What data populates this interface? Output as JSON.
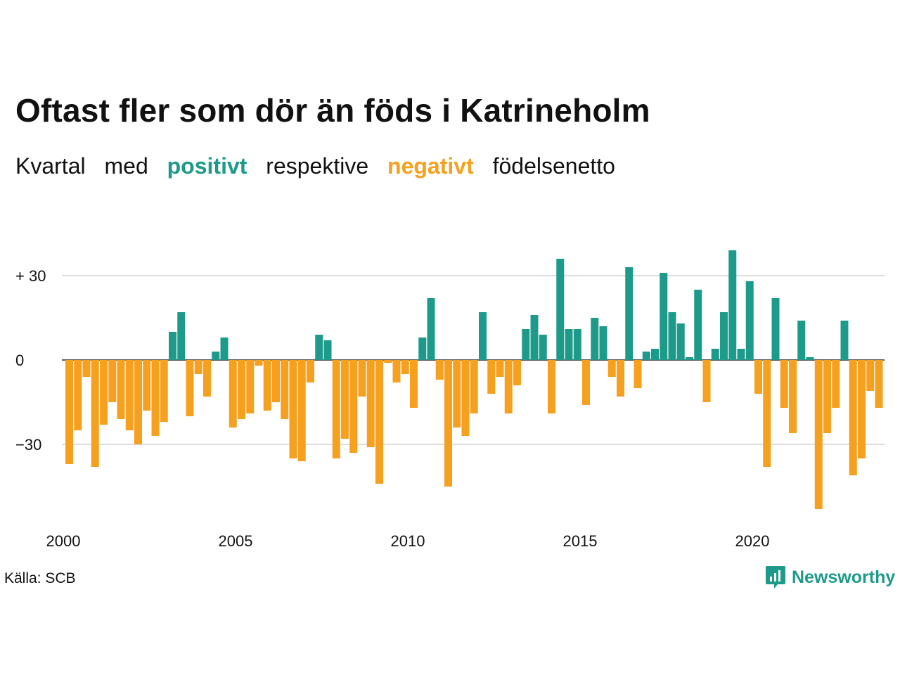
{
  "title": "Oftast fler som dör än föds i Katrineholm",
  "subtitle": {
    "w1": "Kvartal",
    "w2": "med",
    "w3": "positivt",
    "w4": "respektive",
    "w5": "negativt",
    "w6": "födelsenetto"
  },
  "source": "Källa: SCB",
  "brand": {
    "name": "Newsworthy",
    "icon": "newsworthy-logo-icon",
    "color": "#1e9a8a"
  },
  "colors": {
    "positive": "#1e9a8a",
    "negative": "#f5a01e",
    "grid": "#dddddd"
  },
  "chart_data": {
    "type": "bar",
    "title": "Oftast fler som dör än föds i Katrineholm",
    "xlabel": "",
    "ylabel": "",
    "x_ticks": [
      "2000",
      "2005",
      "2010",
      "2015",
      "2020"
    ],
    "y_ticks": [
      {
        "value": 30,
        "label": "+ 30"
      },
      {
        "value": 0,
        "label": "0"
      },
      {
        "value": -30,
        "label": "−30"
      }
    ],
    "ylim": [
      -55,
      40
    ],
    "grid": true,
    "start_year": 2000,
    "values": [
      -37,
      -25,
      -6,
      -38,
      -23,
      -15,
      -21,
      -25,
      -30,
      -18,
      -27,
      -22,
      10,
      17,
      -20,
      -5,
      -13,
      3,
      8,
      -24,
      -21,
      -19,
      -2,
      -18,
      -15,
      -21,
      -35,
      -36,
      -8,
      9,
      7,
      -35,
      -28,
      -33,
      -13,
      -31,
      -44,
      -1,
      -8,
      -5,
      -17,
      8,
      22,
      -7,
      -45,
      -24,
      -27,
      -19,
      17,
      -12,
      -6,
      -19,
      -9,
      11,
      16,
      9,
      -19,
      36,
      11,
      11,
      -16,
      15,
      12,
      -6,
      -13,
      33,
      -10,
      3,
      4,
      31,
      17,
      13,
      1,
      25,
      -15,
      4,
      17,
      39,
      4,
      28,
      -12,
      -38,
      22,
      -17,
      -26,
      14,
      1,
      -53,
      -26,
      -17,
      14,
      -41,
      -35,
      -11,
      -17
    ]
  }
}
